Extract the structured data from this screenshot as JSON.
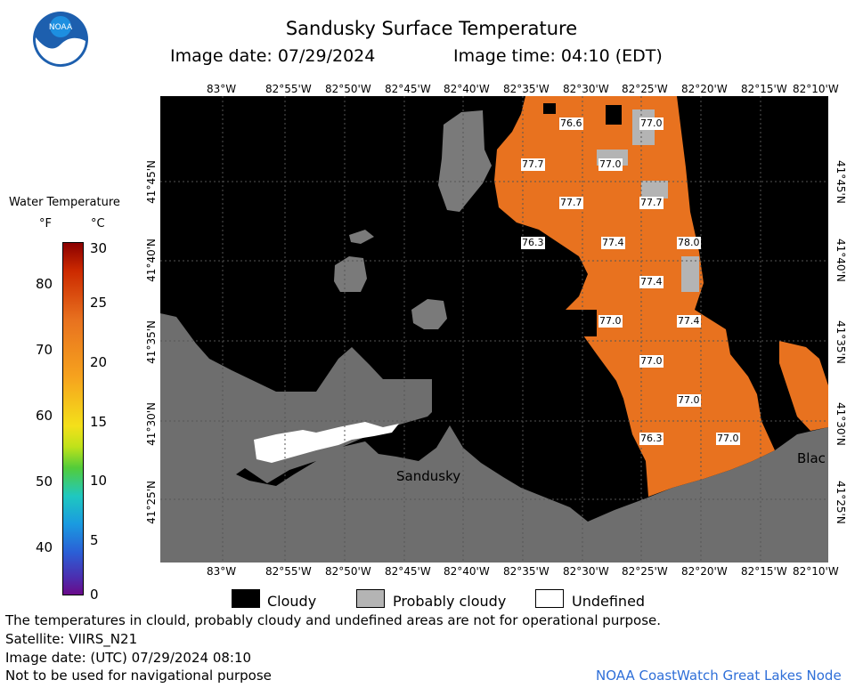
{
  "header": {
    "title": "Sandusky Surface Temperature",
    "image_date": "Image date: 07/29/2024",
    "image_time": "Image time: 04:10 (EDT)"
  },
  "logo": {
    "text": "NOAA"
  },
  "colorbar": {
    "title": "Water Temperature",
    "unit_f": "°F",
    "unit_c": "°C",
    "f_ticks": [
      "80",
      "70",
      "60",
      "50",
      "40"
    ],
    "c_ticks": [
      "30",
      "25",
      "20",
      "15",
      "10",
      "5",
      "0"
    ]
  },
  "axes": {
    "lon_ticks": [
      "83°W",
      "82°55'W",
      "82°50'W",
      "82°45'W",
      "82°40'W",
      "82°35'W",
      "82°30'W",
      "82°25'W",
      "82°20'W",
      "82°15'W",
      "82°10'W"
    ],
    "lat_ticks": [
      "41°45'N",
      "41°40'N",
      "41°35'N",
      "41°30'N",
      "41°25'N"
    ]
  },
  "map": {
    "place_sandusky": "Sandusky",
    "place_blac": "Blac",
    "temp_labels": [
      "76.6",
      "77.0",
      "77.7",
      "77.0",
      "77.7",
      "77.7",
      "76.3",
      "77.4",
      "78.0",
      "77.4",
      "77.0",
      "77.4",
      "77.0",
      "77.0",
      "76.3",
      "77.0"
    ],
    "colors": {
      "land": "#6e6e6e",
      "cloud": "#000000",
      "probably_cloudy": "#b4b4b4",
      "water_warm": "#e8721f"
    }
  },
  "legend": {
    "cloudy": "Cloudy",
    "probably_cloudy": "Probably cloudy",
    "undefined": "Undefined"
  },
  "footer": {
    "note": "The temperatures in clould, probably cloudy and undefined areas are not for operational purpose.",
    "satellite": "Satellite: VIIRS_N21",
    "utc_date": "Image date: (UTC) 07/29/2024  08:10",
    "nav_warning": "Not to be used for navigational purpose",
    "credit": "NOAA CoastWatch Great Lakes Node"
  }
}
